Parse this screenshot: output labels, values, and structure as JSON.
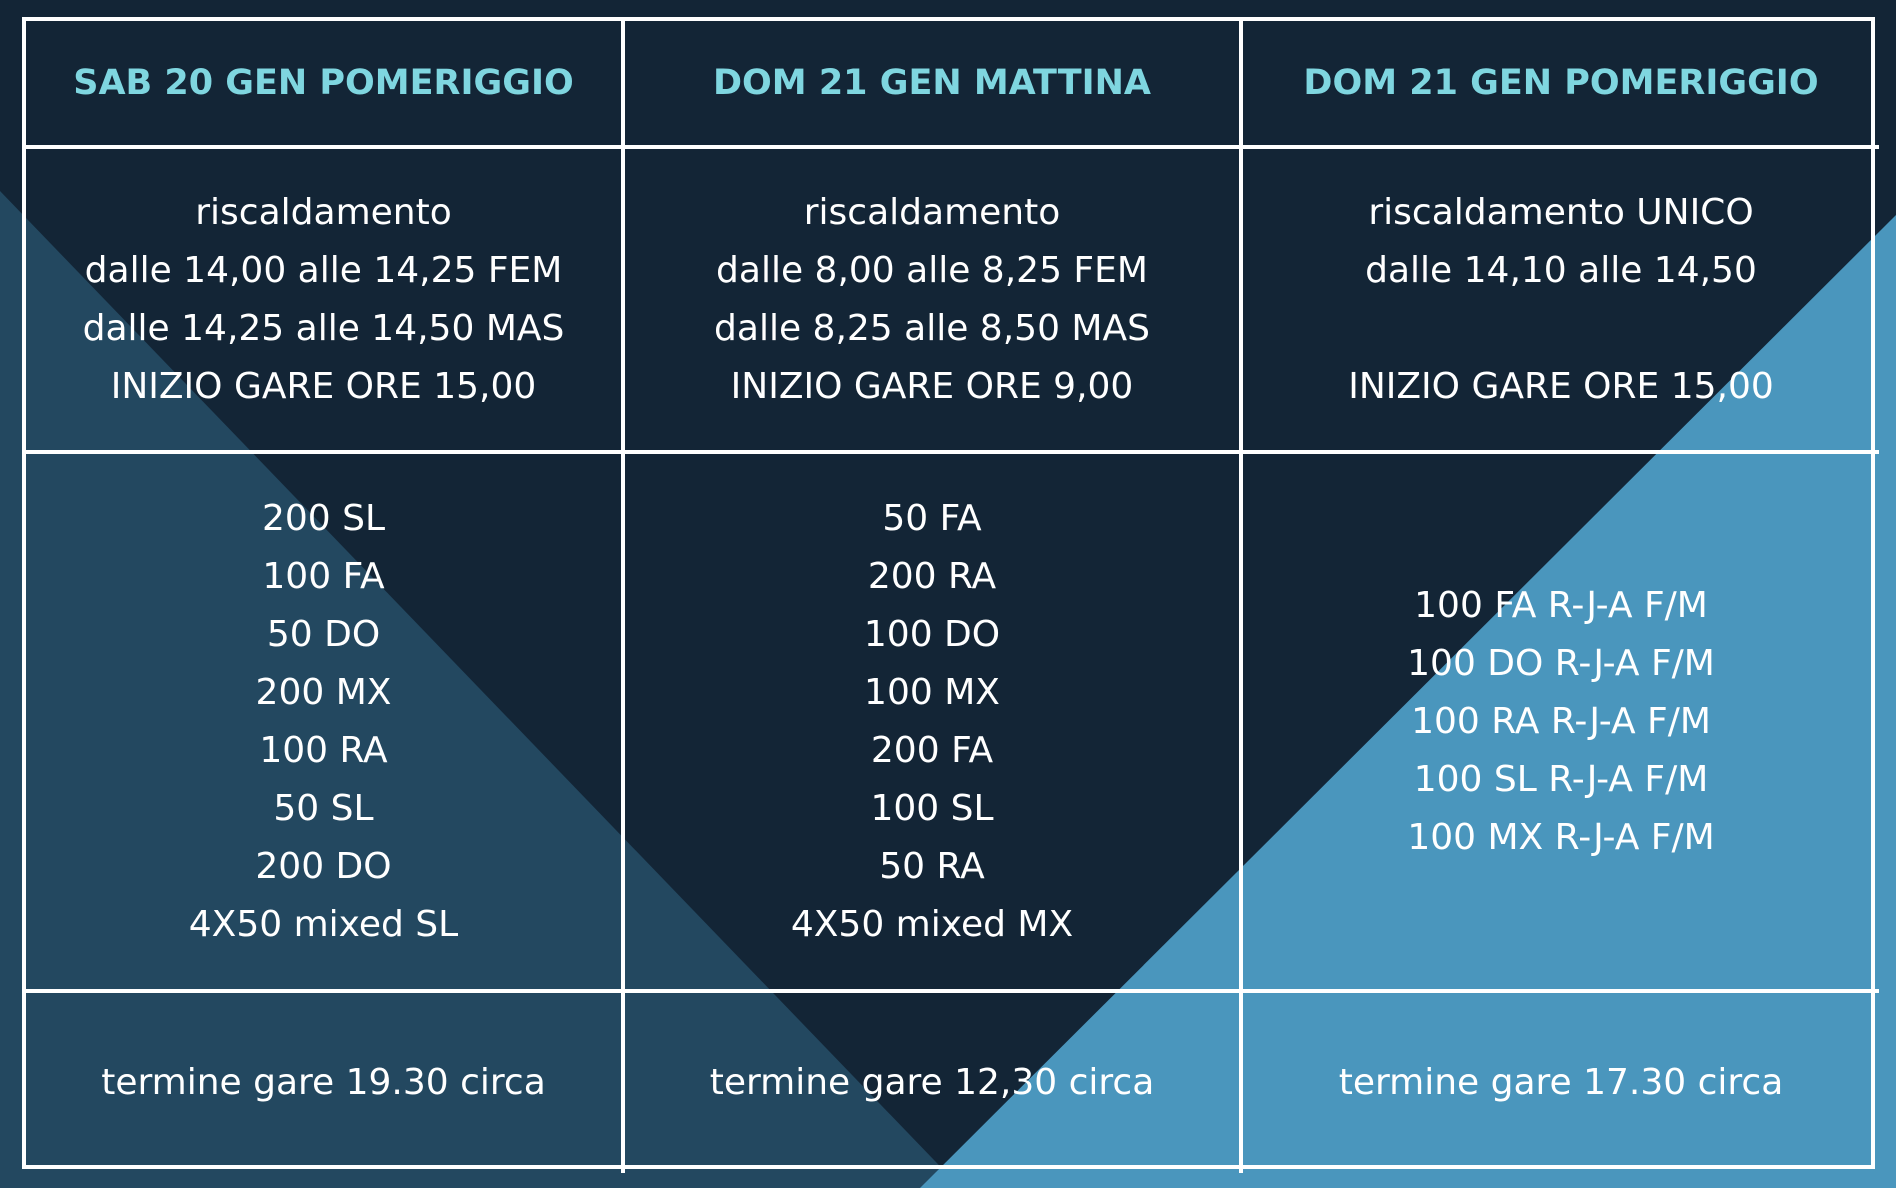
{
  "table": {
    "headers": [
      "SAB 20 GEN POMERIGGIO",
      "DOM 21 GEN MATTINA",
      "DOM 21 GEN POMERIGGIO"
    ],
    "rows": [
      [
        [
          "riscaldamento",
          "dalle 14,00 alle 14,25 FEM",
          "dalle 14,25 alle 14,50 MAS",
          "INIZIO GARE ORE 15,00"
        ],
        [
          "riscaldamento",
          "dalle 8,00 alle 8,25 FEM",
          "dalle 8,25 alle 8,50 MAS",
          "INIZIO GARE ORE 9,00"
        ],
        [
          "riscaldamento UNICO",
          "dalle 14,10 alle 14,50",
          "INIZIO GARE ORE 15,00"
        ]
      ],
      [
        [
          "200 SL",
          "100 FA",
          "50 DO",
          "200 MX",
          "100 RA",
          "50 SL",
          "200 DO",
          "4X50 mixed SL"
        ],
        [
          "50 FA",
          "200 RA",
          "100 DO",
          "100 MX",
          "200 FA",
          "100 SL",
          "50 RA",
          "4X50 mixed MX"
        ],
        [
          "100 FA R-J-A F/M",
          "100 DO R-J-A F/M",
          "100 RA R-J-A F/M",
          "100 SL R-J-A F/M",
          "100 MX R-J-A F/M"
        ]
      ],
      [
        [
          "termine gare 19.30 circa"
        ],
        [
          "termine gare 12,30 circa"
        ],
        [
          "termine gare 17.30 circa"
        ]
      ]
    ]
  }
}
